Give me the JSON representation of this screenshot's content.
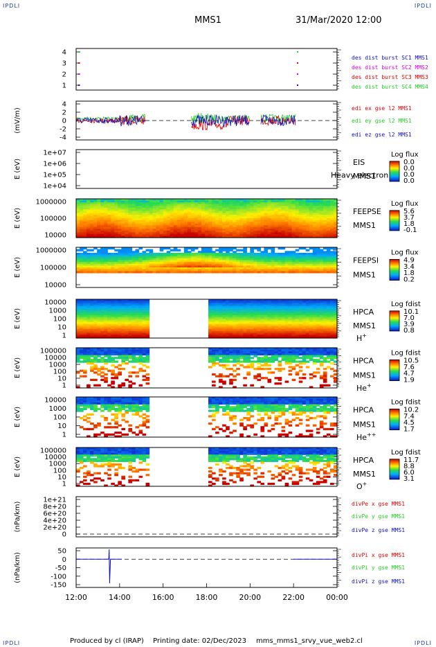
{
  "corner_labels": {
    "tl": "IPDLI",
    "tr": "IPDLI",
    "bl": "IPDLI",
    "br": "IPDLI"
  },
  "title": "MMS1",
  "datetime": "31/Mar/2020 12:00",
  "footer": {
    "producer": "Produced by cl (IRAP)",
    "date": "Printing date: 02/Dec/2023",
    "file": "mms_mms1_srvy_vue_web2.cl"
  },
  "colors": {
    "red": "#dd0000",
    "green": "#22cc22",
    "blue": "#1010c0",
    "magenta": "#dd00dd"
  },
  "chart_data": [
    {
      "type": "scatter",
      "panel": "burst",
      "ylim": [
        0.5,
        4.5
      ],
      "yticks": [
        "1",
        "2",
        "3",
        "4"
      ],
      "legend": [
        {
          "name": "des dist burst SC1 MMS1",
          "color": "blue"
        },
        {
          "name": "des dist burst SC2 MMS2",
          "color": "magenta"
        },
        {
          "name": "des dist burst SC3 MMS3",
          "color": "red"
        },
        {
          "name": "des dist burst SC4 MMS4",
          "color": "green"
        }
      ]
    },
    {
      "type": "line",
      "panel": "edi",
      "ylabel": "(mV/m)",
      "ylim": [
        -5,
        5
      ],
      "yticks": [
        "4",
        "2",
        "0",
        "-2",
        "-4"
      ],
      "legend": [
        {
          "name": "edi ex gse l2 MMS1",
          "color": "red"
        },
        {
          "name": "edi ey gse l2 MMS1",
          "color": "green"
        },
        {
          "name": "edi ez gse l2 MMS1",
          "color": "blue"
        }
      ]
    },
    {
      "type": "heatmap",
      "panel": "eis",
      "ylabel": "E (eV)",
      "yticks": [
        "1e+07",
        "1e+06",
        "1e+05",
        "1e+04"
      ],
      "right": [
        "EIS",
        "MMS1"
      ],
      "overlay": "Heavy electron to",
      "cbar_title": "Log flux",
      "cbar_ticks": [
        "0.0",
        "0.0",
        "0.0",
        "0.0"
      ]
    },
    {
      "type": "heatmap",
      "panel": "feepse",
      "ylabel": "E (eV)",
      "yticks": [
        "1000000",
        "100000",
        "10000"
      ],
      "right": [
        "FEEPSE",
        "MMS1"
      ],
      "cbar_title": "Log flux",
      "cbar_ticks": [
        "5.6",
        "3.7",
        "1.8",
        "-0.1"
      ]
    },
    {
      "type": "heatmap",
      "panel": "feepsi",
      "ylabel": "E (eV)",
      "yticks": [
        "1000000",
        "100000",
        "10000"
      ],
      "right": [
        "FEEPSI",
        "MMS1"
      ],
      "cbar_title": "Log flux",
      "cbar_ticks": [
        "4.9",
        "3.4",
        "1.8",
        "0.2"
      ]
    },
    {
      "type": "heatmap",
      "panel": "hpca_h",
      "ylabel": "E (eV)",
      "yticks": [
        "10000",
        "1000",
        "100",
        "10",
        "1"
      ],
      "right": [
        "HPCA",
        "MMS1"
      ],
      "species": "H",
      "charge": "+",
      "cbar_title": "Log fdist",
      "cbar_ticks": [
        "10.1",
        "7.0",
        "3.9",
        "0.8"
      ]
    },
    {
      "type": "heatmap",
      "panel": "hpca_he",
      "ylabel": "E (eV)",
      "yticks": [
        "100000",
        "10000",
        "1000",
        "100",
        "10",
        "1"
      ],
      "right": [
        "HPCA",
        "MMS1"
      ],
      "species": "He",
      "charge": "+",
      "cbar_title": "Log fdist",
      "cbar_ticks": [
        "10.5",
        "7.6",
        "4.7",
        "1.9"
      ]
    },
    {
      "type": "heatmap",
      "panel": "hpca_he2",
      "ylabel": "E (eV)",
      "yticks": [
        "10000",
        "1000",
        "100",
        "10",
        "1"
      ],
      "right": [
        "HPCA",
        "MMS1"
      ],
      "species": "He",
      "charge": "++",
      "cbar_title": "Log fdist",
      "cbar_ticks": [
        "10.2",
        "7.4",
        "4.5",
        "1.7"
      ]
    },
    {
      "type": "heatmap",
      "panel": "hpca_o",
      "ylabel": "E (eV)",
      "yticks": [
        "100000",
        "10000",
        "1000",
        "100",
        "10",
        "1"
      ],
      "right": [
        "HPCA",
        "MMS1"
      ],
      "species": "O",
      "charge": "+",
      "cbar_title": "Log fdist",
      "cbar_ticks": [
        "11.7",
        "8.8",
        "6.0",
        "3.1"
      ]
    },
    {
      "type": "line",
      "panel": "divpe",
      "ylabel": "(nPa/km)",
      "yticks": [
        "1e+21",
        "8e+20",
        "6e+20",
        "4e+20",
        "2e+20",
        "0"
      ],
      "legend": [
        {
          "name": "divPe x gse MMS1",
          "color": "red"
        },
        {
          "name": "divPe y gse MMS1",
          "color": "green"
        },
        {
          "name": "divPe z gse MMS1",
          "color": "blue"
        }
      ]
    },
    {
      "type": "line",
      "panel": "divpi",
      "ylabel": "(nPa/km)",
      "ylim": [
        -175,
        75
      ],
      "yticks": [
        "50",
        "0",
        "-50",
        "-100",
        "-150"
      ],
      "legend": [
        {
          "name": "divPi x gse MMS1",
          "color": "red"
        },
        {
          "name": "divPi y gse MMS1",
          "color": "green"
        },
        {
          "name": "divPi z gse MMS1",
          "color": "blue"
        }
      ]
    }
  ],
  "x_ticks": [
    "12:00",
    "14:00",
    "16:00",
    "18:00",
    "20:00",
    "22:00",
    "00:00"
  ]
}
